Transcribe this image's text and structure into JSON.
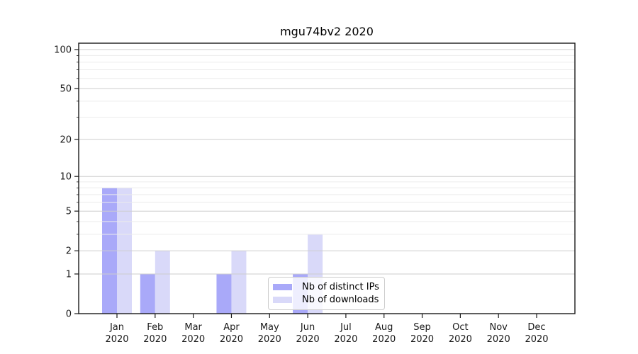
{
  "title": "mgu74bv2 2020",
  "chart_data": {
    "type": "bar",
    "title": "mgu74bv2 2020",
    "xlabel": "",
    "ylabel": "",
    "categories": [
      "Jan",
      "Feb",
      "Mar",
      "Apr",
      "May",
      "Jun",
      "Jul",
      "Aug",
      "Sep",
      "Oct",
      "Nov",
      "Dec"
    ],
    "category_year": "2020",
    "series": [
      {
        "name": "Nb of distinct IPs",
        "color": "#a9a9f9",
        "values": [
          8,
          1,
          0,
          1,
          0,
          1,
          0,
          0,
          0,
          0,
          0,
          0
        ]
      },
      {
        "name": "Nb of downloads",
        "color": "#d9d9f9",
        "values": [
          8,
          2,
          0,
          2,
          0,
          3,
          0,
          0,
          0,
          0,
          0,
          0
        ]
      }
    ],
    "yscale": "log1p",
    "ylim": [
      0,
      113
    ],
    "yticks_major": [
      0,
      1,
      2,
      5,
      10,
      20,
      50,
      100
    ],
    "ytick_labels": [
      "0",
      "1",
      "2",
      "5",
      "10",
      "20",
      "50",
      "100"
    ],
    "yticks_minor": [
      3,
      4,
      6,
      7,
      8,
      9,
      30,
      40,
      60,
      70,
      80,
      90
    ],
    "grid": "horizontal",
    "legend_position": "lower center-right"
  },
  "colors": {
    "background": "#ffffff",
    "bar_distinct_ips": "#a9a9f9",
    "bar_downloads": "#d9d9f9",
    "grid_major": "#cdcdcd",
    "grid_minor": "#ececec",
    "axis": "#1a1a1a",
    "tick_text": "#1a1a1a",
    "legend_border": "#cccccc"
  }
}
